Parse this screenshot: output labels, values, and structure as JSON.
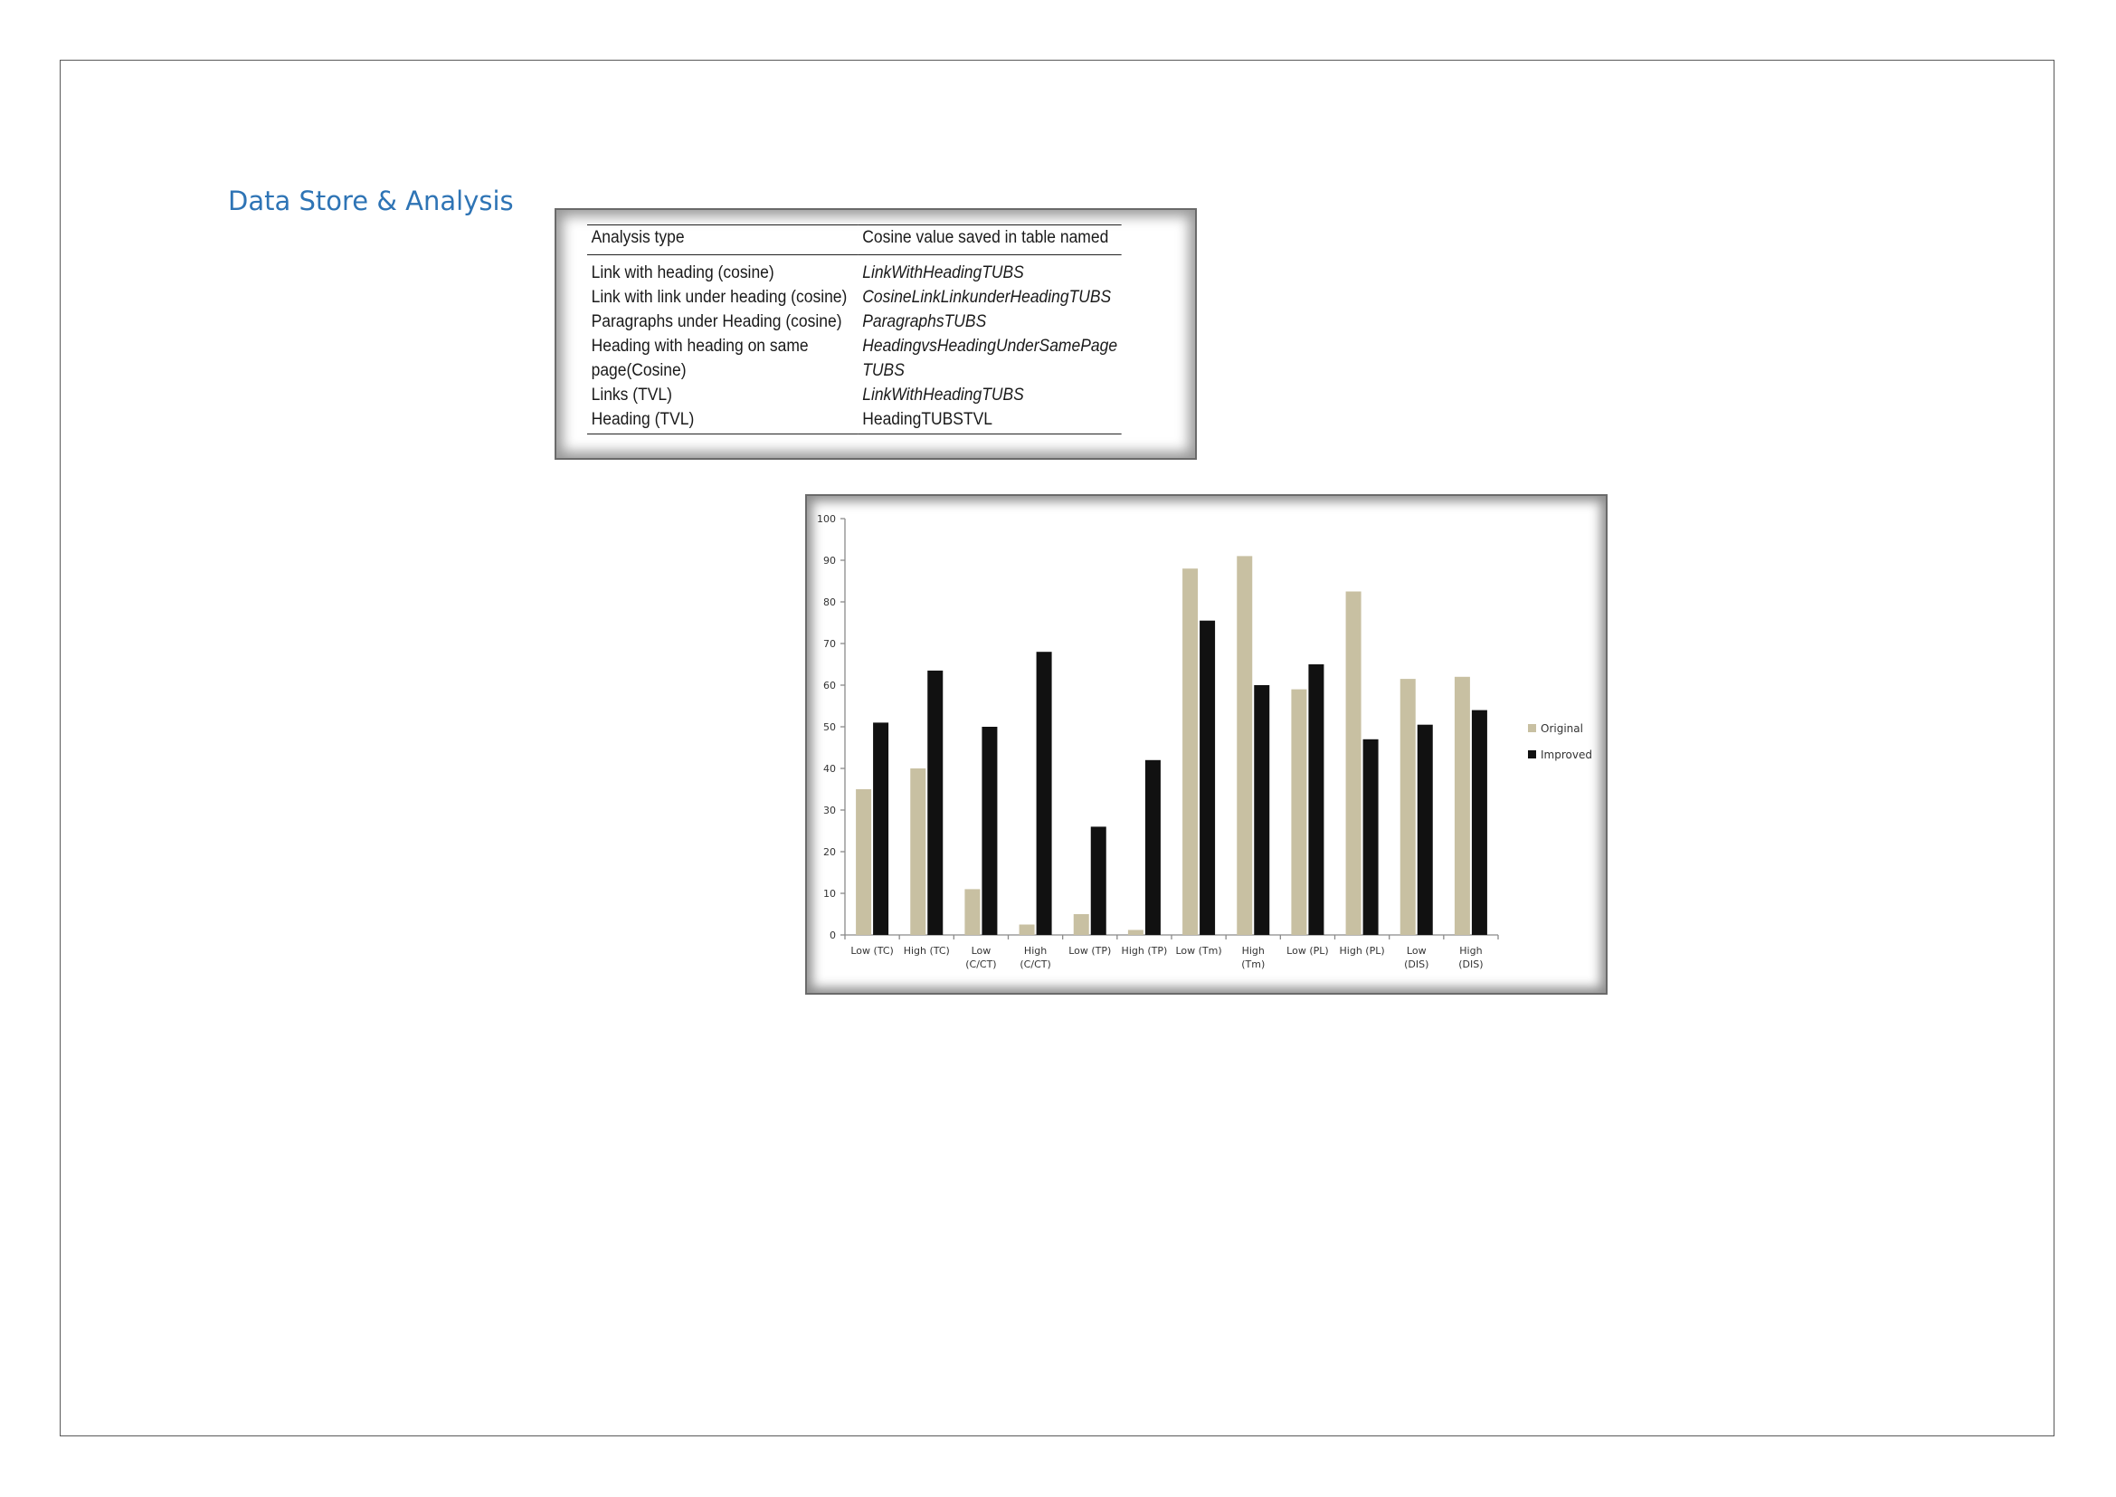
{
  "section_title": "Data Store & Analysis",
  "table": {
    "headers": [
      "Analysis type",
      "Cosine value saved in table named"
    ],
    "rows": [
      {
        "type": "Link with heading (cosine)",
        "table_name": "LinkWithHeadingTUBS",
        "italic": true
      },
      {
        "type": "Link with link under heading (cosine)",
        "table_name": "CosineLinkLinkunderHeadingTUBS",
        "italic": true
      },
      {
        "type": "Paragraphs under Heading (cosine)",
        "table_name": "ParagraphsTUBS",
        "italic": true
      },
      {
        "type": "Heading with heading on same",
        "table_name": "HeadingvsHeadingUnderSamePage",
        "italic": true
      },
      {
        "type": "page(Cosine)",
        "table_name": "TUBS",
        "italic": true
      },
      {
        "type": "Links (TVL)",
        "table_name": "LinkWithHeadingTUBS",
        "italic": true
      },
      {
        "type": "Heading (TVL)",
        "table_name": "HeadingTUBSTVL",
        "italic": false
      }
    ]
  },
  "chart_data": {
    "type": "bar",
    "categories": [
      [
        "Low (TC)"
      ],
      [
        "High (TC)"
      ],
      [
        "Low",
        "(C/CT)"
      ],
      [
        "High",
        "(C/CT)"
      ],
      [
        "Low (TP)"
      ],
      [
        "High (TP)"
      ],
      [
        "Low (Tm)"
      ],
      [
        "High",
        "(Tm)"
      ],
      [
        "Low (PL)"
      ],
      [
        "High (PL)"
      ],
      [
        "Low",
        "(DIS)"
      ],
      [
        "High",
        "(DIS)"
      ]
    ],
    "series": [
      {
        "name": "Original",
        "color": "#c8c0a2",
        "values": [
          35,
          40,
          11,
          2.5,
          5,
          1.2,
          88,
          91,
          59,
          82.5,
          61.5,
          62
        ]
      },
      {
        "name": "Improved",
        "color": "#111111",
        "values": [
          51,
          63.5,
          50,
          68,
          26,
          42,
          75.5,
          60,
          65,
          47,
          50.5,
          54
        ]
      }
    ],
    "ylim": [
      0,
      100
    ],
    "yticks": [
      "0",
      "10",
      "20",
      "30",
      "40",
      "50",
      "60",
      "70",
      "80",
      "90",
      "100"
    ],
    "xlabel": "",
    "ylabel": "",
    "legend_position": "right",
    "grid": false
  }
}
